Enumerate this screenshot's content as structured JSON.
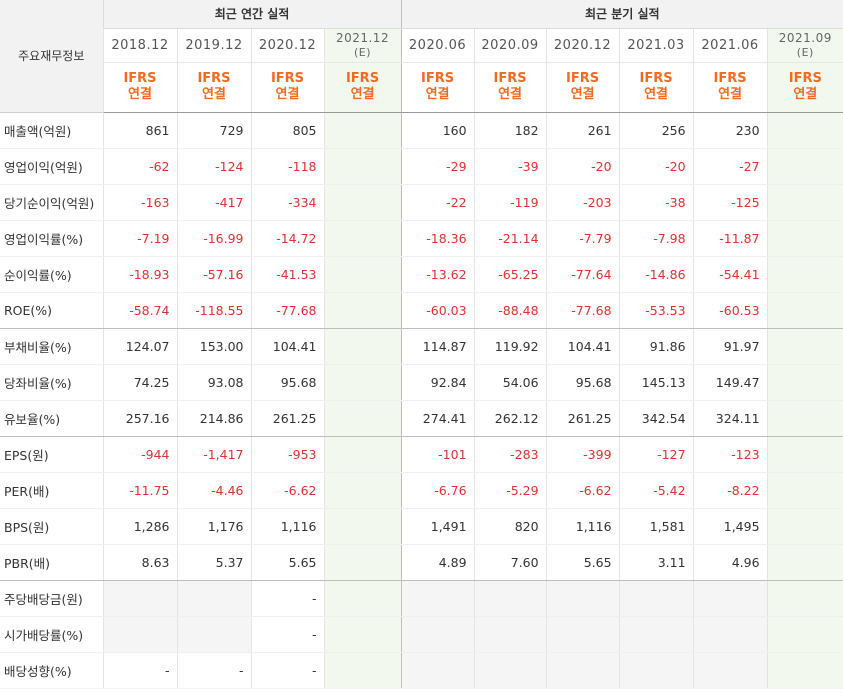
{
  "header": {
    "corner_label": "주요재무정보",
    "annual_title": "최근 연간 실적",
    "quarterly_title": "최근 분기 실적",
    "annual_periods": [
      "2018.12",
      "2019.12",
      "2020.12",
      "2021.12"
    ],
    "annual_est_tag": "(E)",
    "quarterly_periods": [
      "2020.06",
      "2020.09",
      "2020.12",
      "2021.03",
      "2021.06",
      "2021.09"
    ],
    "quarterly_est_tag": "(E)",
    "ifrs": "IFRS",
    "consolidated": "연결"
  },
  "colors": {
    "negative": "#e03030",
    "ifrs_accent": "#f16a21",
    "estimate_bg": "#f3f8ef"
  },
  "rows": [
    {
      "label": "매출액(억원)",
      "values": [
        "861",
        "729",
        "805",
        "",
        "160",
        "182",
        "261",
        "256",
        "230",
        ""
      ]
    },
    {
      "label": "영업이익(억원)",
      "values": [
        "-62",
        "-124",
        "-118",
        "",
        "-29",
        "-39",
        "-20",
        "-20",
        "-27",
        ""
      ]
    },
    {
      "label": "당기순이익(억원)",
      "values": [
        "-163",
        "-417",
        "-334",
        "",
        "-22",
        "-119",
        "-203",
        "-38",
        "-125",
        ""
      ]
    },
    {
      "label": "영업이익률(%)",
      "values": [
        "-7.19",
        "-16.99",
        "-14.72",
        "",
        "-18.36",
        "-21.14",
        "-7.79",
        "-7.98",
        "-11.87",
        ""
      ]
    },
    {
      "label": "순이익률(%)",
      "values": [
        "-18.93",
        "-57.16",
        "-41.53",
        "",
        "-13.62",
        "-65.25",
        "-77.64",
        "-14.86",
        "-54.41",
        ""
      ]
    },
    {
      "label": "ROE(%)",
      "values": [
        "-58.74",
        "-118.55",
        "-77.68",
        "",
        "-60.03",
        "-88.48",
        "-77.68",
        "-53.53",
        "-60.53",
        ""
      ]
    },
    {
      "label": "부채비율(%)",
      "values": [
        "124.07",
        "153.00",
        "104.41",
        "",
        "114.87",
        "119.92",
        "104.41",
        "91.86",
        "91.97",
        ""
      ]
    },
    {
      "label": "당좌비율(%)",
      "values": [
        "74.25",
        "93.08",
        "95.68",
        "",
        "92.84",
        "54.06",
        "95.68",
        "145.13",
        "149.47",
        ""
      ]
    },
    {
      "label": "유보율(%)",
      "values": [
        "257.16",
        "214.86",
        "261.25",
        "",
        "274.41",
        "262.12",
        "261.25",
        "342.54",
        "324.11",
        ""
      ]
    },
    {
      "label": "EPS(원)",
      "values": [
        "-944",
        "-1,417",
        "-953",
        "",
        "-101",
        "-283",
        "-399",
        "-127",
        "-123",
        ""
      ]
    },
    {
      "label": "PER(배)",
      "values": [
        "-11.75",
        "-4.46",
        "-6.62",
        "",
        "-6.76",
        "-5.29",
        "-6.62",
        "-5.42",
        "-8.22",
        ""
      ]
    },
    {
      "label": "BPS(원)",
      "values": [
        "1,286",
        "1,176",
        "1,116",
        "",
        "1,491",
        "820",
        "1,116",
        "1,581",
        "1,495",
        ""
      ]
    },
    {
      "label": "PBR(배)",
      "values": [
        "8.63",
        "5.37",
        "5.65",
        "",
        "4.89",
        "7.60",
        "5.65",
        "3.11",
        "4.96",
        ""
      ]
    },
    {
      "label": "주당배당금(원)",
      "values": [
        "",
        "",
        "-",
        "",
        "",
        "",
        "",
        "",
        "",
        ""
      ]
    },
    {
      "label": "시가배당률(%)",
      "values": [
        "",
        "",
        "-",
        "",
        "",
        "",
        "",
        "",
        "",
        ""
      ]
    },
    {
      "label": "배당성향(%)",
      "values": [
        "-",
        "-",
        "-",
        "",
        "",
        "",
        "",
        "",
        "",
        ""
      ]
    }
  ]
}
